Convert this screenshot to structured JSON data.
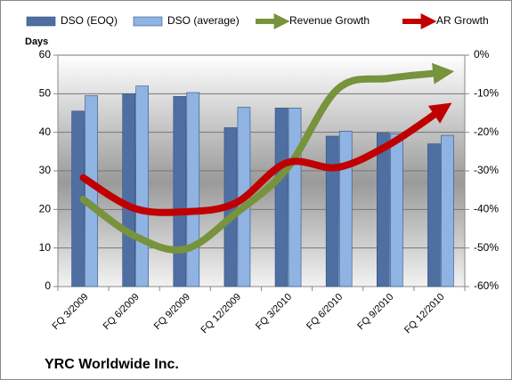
{
  "chart_data": {
    "type": "bar",
    "title": "YRC Worldwide Inc.",
    "ylabel": "Days",
    "categories": [
      "FQ 3/2009",
      "FQ 6/2009",
      "FQ 9/2009",
      "FQ 12/2009",
      "FQ 3/2010",
      "FQ 6/2010",
      "FQ 9/2010",
      "FQ 12/2010"
    ],
    "series": [
      {
        "name": "DSO (EOQ)",
        "type": "bar",
        "color": "#4f6fa3",
        "values": [
          45.5,
          50,
          49.3,
          41.2,
          46.3,
          39,
          39.8,
          37
        ]
      },
      {
        "name": "DSO (average)",
        "type": "bar",
        "color": "#8fb4e3",
        "values": [
          49.5,
          52,
          50.3,
          46.5,
          46.3,
          40.3,
          39.6,
          39.2
        ]
      },
      {
        "name": "Revenue Growth",
        "type": "line",
        "axis": "y2",
        "color": "#77933c",
        "values": [
          -37.4,
          -46.8,
          -50.3,
          -41,
          -29.5,
          -8.8,
          -6,
          -4.6
        ]
      },
      {
        "name": "AR Growth",
        "type": "line",
        "axis": "y2",
        "color": "#c00000",
        "values": [
          -31.8,
          -39.7,
          -40.6,
          -38.3,
          -27.9,
          -29.1,
          -23.3,
          -14.5
        ]
      }
    ],
    "ylim": [
      0,
      60
    ],
    "yticks": [
      0,
      10,
      20,
      30,
      40,
      50,
      60
    ],
    "y2lim": [
      -60,
      0
    ],
    "y2ticks": [
      {
        "value": 0,
        "label": "0%"
      },
      {
        "value": -10,
        "label": "-10%"
      },
      {
        "value": -20,
        "label": "-20%"
      },
      {
        "value": -30,
        "label": "-30%"
      },
      {
        "value": -40,
        "label": "-40%"
      },
      {
        "value": -50,
        "label": "-50%"
      },
      {
        "value": -60,
        "label": "-60%"
      }
    ],
    "grid": true
  }
}
